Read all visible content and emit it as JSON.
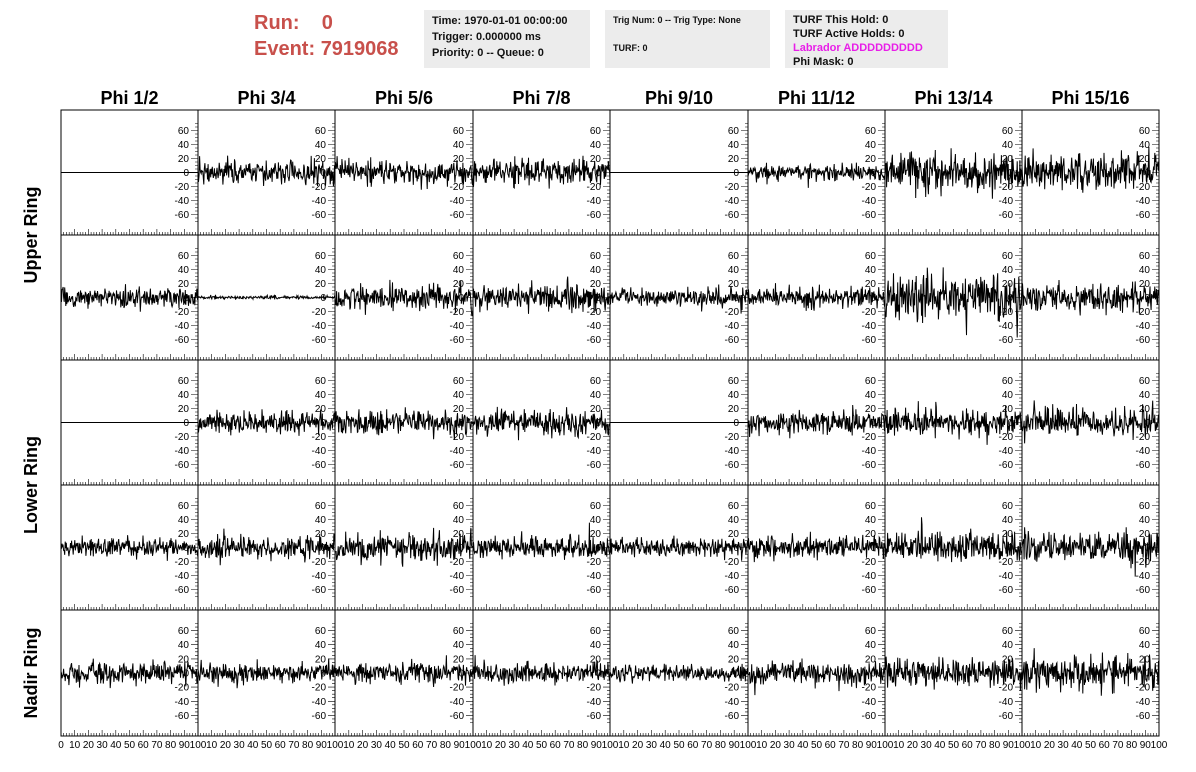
{
  "header": {
    "run_label": "Run:",
    "run_value": "0",
    "event_label": "Event:",
    "event_value": "7919068"
  },
  "info_box1": {
    "time": "Time: 1970-01-01 00:00:00",
    "trigger": "Trigger: 0.000000 ms",
    "priority": "Priority: 0 -- Queue: 0"
  },
  "info_box2": {
    "trig": "Trig Num: 0 -- Trig Type: None",
    "turf": "TURF: 0"
  },
  "info_box3": {
    "this_hold": "TURF This Hold: 0",
    "active_holds": "TURF Active Holds: 0",
    "labrador": "Labrador ADDDDDDDDD",
    "phi_mask": "Phi Mask: 0",
    "labrador_color": "#e81ee8"
  },
  "chart_data": {
    "type": "line",
    "columns": [
      "Phi 1/2",
      "Phi 3/4",
      "Phi 5/6",
      "Phi 7/8",
      "Phi 9/10",
      "Phi 11/12",
      "Phi 13/14",
      "Phi 15/16"
    ],
    "ring_groups": [
      {
        "name": "Upper Ring",
        "rows": [
          0,
          1
        ]
      },
      {
        "name": "Lower Ring",
        "rows": [
          2,
          3
        ]
      },
      {
        "name": "Nadir Ring",
        "rows": [
          4
        ]
      }
    ],
    "xlim": [
      0,
      100
    ],
    "ylim": [
      -75,
      75
    ],
    "y_ticks": [
      -60,
      -40,
      -20,
      0,
      20,
      40,
      60
    ],
    "x_ticks": [
      0,
      10,
      20,
      30,
      40,
      50,
      60,
      70,
      80,
      90,
      100
    ],
    "x_tick_labels": [
      "0",
      "10",
      "20",
      "30",
      "40",
      "50",
      "60",
      "70",
      "80",
      "90",
      "100"
    ],
    "samples_per_trace": 260,
    "trace_color": "#000000",
    "amplitudes": [
      [
        0,
        14,
        14,
        16,
        0,
        10,
        24,
        22
      ],
      [
        12,
        2,
        14,
        16,
        11,
        12,
        26,
        16
      ],
      [
        0,
        12,
        14,
        14,
        0,
        13,
        16,
        16
      ],
      [
        12,
        14,
        16,
        14,
        10,
        13,
        17,
        18
      ],
      [
        13,
        12,
        12,
        13,
        9,
        14,
        17,
        21
      ]
    ]
  }
}
